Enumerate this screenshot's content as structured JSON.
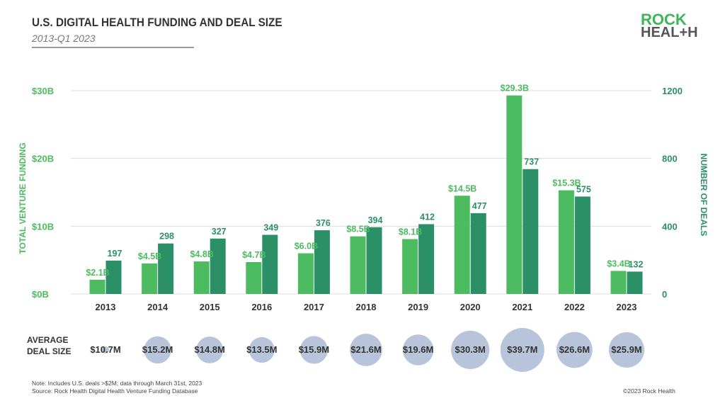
{
  "header": {
    "title": "U.S. DIGITAL HEALTH FUNDING AND DEAL SIZE",
    "subtitle": "2013-Q1 2023"
  },
  "logo": {
    "line1": "ROCK",
    "line2": "HEAL+H"
  },
  "chart_data": {
    "type": "bar",
    "categories": [
      "2013",
      "2014",
      "2015",
      "2016",
      "2017",
      "2018",
      "2019",
      "2020",
      "2021",
      "2022",
      "2023"
    ],
    "series": [
      {
        "name": "TOTAL VENTURE FUNDING",
        "axis": "left",
        "color": "#4dbb60",
        "values": [
          2.1,
          4.5,
          4.8,
          4.7,
          6.0,
          8.5,
          8.1,
          14.5,
          29.3,
          15.3,
          3.4
        ],
        "labels": [
          "$2.1B",
          "$4.5B",
          "$4.8B",
          "$4.7B",
          "$6.0B",
          "$8.5B",
          "$8.1B",
          "$14.5B",
          "$29.3B",
          "$15.3B",
          "$3.4B"
        ]
      },
      {
        "name": "NUMBER OF DEALS",
        "axis": "right",
        "color": "#2b8f68",
        "values": [
          197,
          298,
          327,
          349,
          376,
          394,
          412,
          477,
          737,
          575,
          132
        ]
      }
    ],
    "left_axis": {
      "label": "TOTAL VENTURE FUNDING",
      "ylim": [
        0,
        30
      ],
      "ticks": [
        "$0B",
        "$10B",
        "$20B",
        "$30B"
      ]
    },
    "right_axis": {
      "label": "NUMBER OF DEALS",
      "ylim": [
        0,
        1200
      ],
      "ticks": [
        "0",
        "400",
        "800",
        "1200"
      ]
    },
    "grid": true,
    "bubbles": {
      "label_line1": "AVERAGE",
      "label_line2": "DEAL SIZE",
      "color": "#b8c4da",
      "values": [
        10.7,
        15.2,
        14.8,
        13.5,
        15.9,
        21.6,
        19.6,
        30.3,
        39.7,
        26.6,
        25.9
      ],
      "labels": [
        "$10.7M",
        "$15.2M",
        "$14.8M",
        "$13.5M",
        "$15.9M",
        "$21.6M",
        "$19.6M",
        "$30.3M",
        "$39.7M",
        "$26.6M",
        "$25.9M"
      ]
    }
  },
  "footer": {
    "note": "Note: Includes U.S. deals >$2M; data through March 31st, 2023",
    "source": "Source: Rock Health Digital Health Venture Funding Database",
    "copyright": "©2023 Rock Health"
  }
}
